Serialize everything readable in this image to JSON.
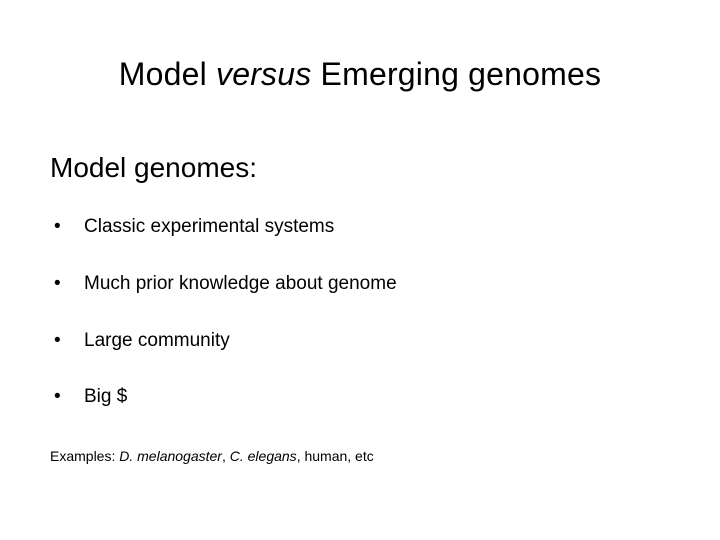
{
  "title": {
    "pre": "Model ",
    "italic": "versus",
    "post": " Emerging genomes",
    "fontsize_pt": 32,
    "color": "#000000"
  },
  "subheading": {
    "text": "Model genomes:",
    "fontsize_pt": 28,
    "color": "#000000"
  },
  "bullets": {
    "marker": "•",
    "fontsize_pt": 19,
    "color": "#000000",
    "items": [
      {
        "text": "Classic experimental systems"
      },
      {
        "text": "Much prior knowledge about genome"
      },
      {
        "text": "Large community"
      },
      {
        "text": "Big $"
      }
    ]
  },
  "footer": {
    "pre": "Examples: ",
    "ex1": "D. melanogaster",
    "sep": ", ",
    "ex2": "C. elegans",
    "post": ", human, etc",
    "fontsize_pt": 14,
    "color": "#000000"
  },
  "background_color": "#ffffff"
}
